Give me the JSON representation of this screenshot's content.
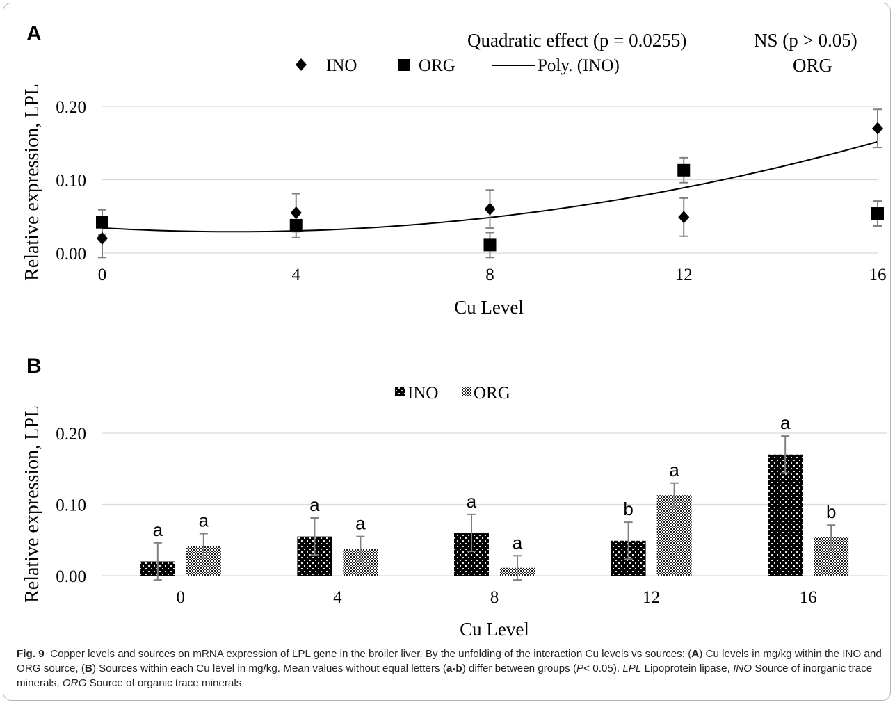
{
  "panel_a": {
    "label": "A",
    "annotation_left": "Quadratic effect (p = 0.0255)",
    "annotation_right_1": "NS (p > 0.05)",
    "annotation_right_2": "ORG",
    "legend": {
      "ino": "INO",
      "org": "ORG",
      "poly": "Poly. (INO)"
    },
    "ylabel": "Relative expression, LPL",
    "xlabel": "Cu Level",
    "yticks": [
      "0.00",
      "0.10",
      "0.20"
    ],
    "xticks": [
      "0",
      "4",
      "8",
      "12",
      "16"
    ]
  },
  "panel_b": {
    "label": "B",
    "legend": {
      "ino": "INO",
      "org": "ORG"
    },
    "ylabel": "Relative expression, LPL",
    "xlabel": "Cu Level",
    "yticks": [
      "0.00",
      "0.10",
      "0.20"
    ],
    "xticks": [
      "0",
      "4",
      "8",
      "12",
      "16"
    ]
  },
  "chart_data": [
    {
      "type": "scatter",
      "panel": "A",
      "xlabel": "Cu Level",
      "ylabel": "Relative expression, LPL",
      "x": [
        0,
        4,
        8,
        12,
        16
      ],
      "xlim": [
        0,
        16
      ],
      "ylim": [
        0,
        0.2
      ],
      "series": [
        {
          "name": "INO",
          "marker": "diamond",
          "values": [
            0.02,
            0.055,
            0.06,
            0.049,
            0.17
          ],
          "errors": [
            0.026,
            0.026,
            0.026,
            0.026,
            0.026
          ]
        },
        {
          "name": "ORG",
          "marker": "square",
          "values": [
            0.042,
            0.038,
            0.011,
            0.113,
            0.054
          ],
          "errors": [
            0.017,
            0.017,
            0.017,
            0.017,
            0.017
          ]
        }
      ],
      "trendline": {
        "name": "Poly. (INO)",
        "type": "polynomial",
        "order": 2
      },
      "grid": true,
      "legend_position": "top"
    },
    {
      "type": "bar",
      "panel": "B",
      "xlabel": "Cu Level",
      "ylabel": "Relative expression, LPL",
      "categories": [
        "0",
        "4",
        "8",
        "12",
        "16"
      ],
      "ylim": [
        0,
        0.2
      ],
      "series": [
        {
          "name": "INO",
          "values": [
            0.02,
            0.055,
            0.06,
            0.049,
            0.17
          ],
          "errors": [
            0.026,
            0.026,
            0.026,
            0.026,
            0.026
          ],
          "letters": [
            "a",
            "a",
            "a",
            "b",
            "a"
          ]
        },
        {
          "name": "ORG",
          "values": [
            0.042,
            0.038,
            0.011,
            0.113,
            0.054
          ],
          "errors": [
            0.017,
            0.017,
            0.017,
            0.017,
            0.017
          ],
          "letters": [
            "a",
            "a",
            "a",
            "a",
            "b"
          ]
        }
      ],
      "grid": true,
      "legend_position": "top"
    }
  ],
  "caption": {
    "fig_label": "Fig. 9",
    "seg1": "Copper levels and sources on mRNA expression of LPL gene in the broiler liver. By the unfolding of the interaction Cu levels vs sources: (",
    "lblA": "A",
    "seg2": ") Cu levels in mg/kg within the INO and ORG source, (",
    "lblB": "B",
    "seg3": ") Sources within each Cu level in mg/kg. Mean values without equal letters (",
    "lblAB": "a-b",
    "seg4": ") differ between groups (",
    "p_italic": "P",
    "seg5": "< 0.05). ",
    "abbr1": "LPL",
    "seg6": " Lipoprotein lipase, ",
    "abbr2": "INO",
    "seg7": " Source of inorganic trace minerals, ",
    "abbr3": "ORG",
    "seg8": " Source of organic trace minerals"
  }
}
